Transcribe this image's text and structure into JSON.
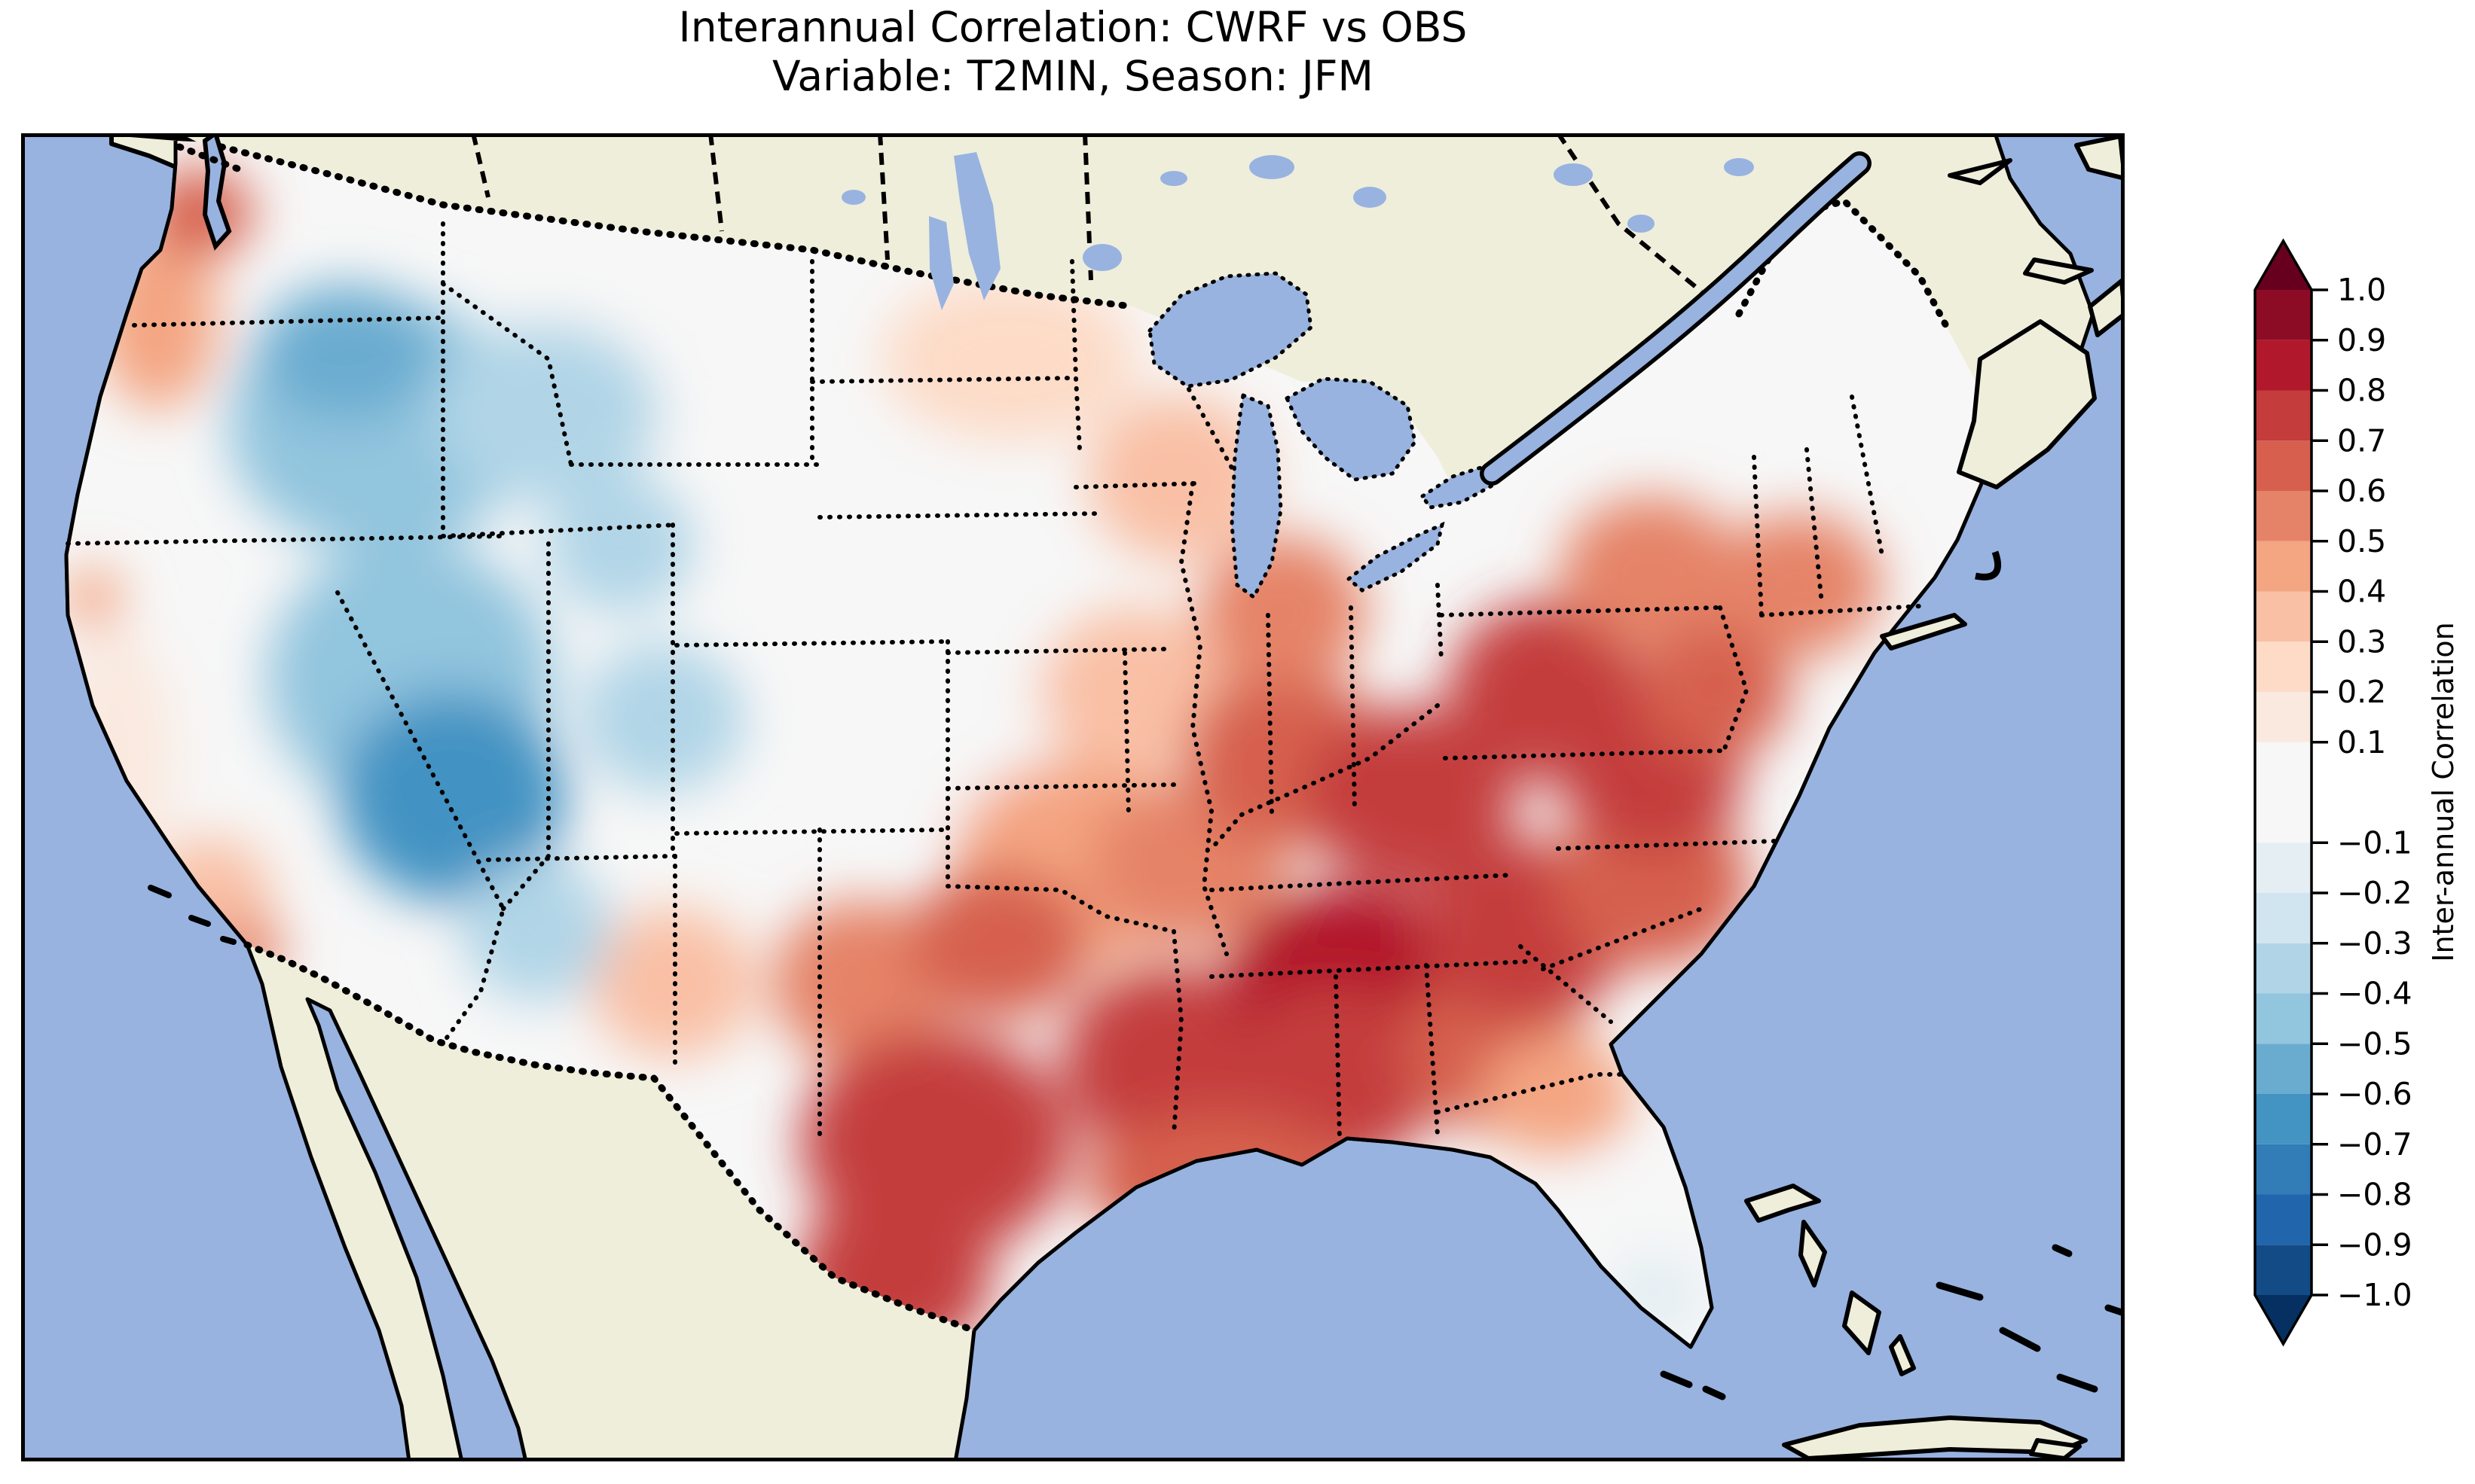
{
  "figure": {
    "title_line1": "Interannual Correlation: CWRF vs OBS",
    "title_line2": "Variable: T2MIN, Season: JFM"
  },
  "map": {
    "colors": {
      "ocean": "#98b3e0",
      "land": "#efeedb",
      "lake": "#98b3e0",
      "coastline": "#000000",
      "background": "#ffffff"
    }
  },
  "colorbar": {
    "label": "Inter-annual Correlation",
    "orientation": "vertical",
    "ticks": [
      {
        "value": 1.0,
        "label": "1.0"
      },
      {
        "value": 0.9,
        "label": "0.9"
      },
      {
        "value": 0.8,
        "label": "0.8"
      },
      {
        "value": 0.7,
        "label": "0.7"
      },
      {
        "value": 0.6,
        "label": "0.6"
      },
      {
        "value": 0.5,
        "label": "0.5"
      },
      {
        "value": 0.4,
        "label": "0.4"
      },
      {
        "value": 0.3,
        "label": "0.3"
      },
      {
        "value": 0.2,
        "label": "0.2"
      },
      {
        "value": 0.1,
        "label": "0.1"
      },
      {
        "value": -0.1,
        "label": "−0.1"
      },
      {
        "value": -0.2,
        "label": "−0.2"
      },
      {
        "value": -0.3,
        "label": "−0.3"
      },
      {
        "value": -0.4,
        "label": "−0.4"
      },
      {
        "value": -0.5,
        "label": "−0.5"
      },
      {
        "value": -0.6,
        "label": "−0.6"
      },
      {
        "value": -0.7,
        "label": "−0.7"
      },
      {
        "value": -0.8,
        "label": "−0.8"
      },
      {
        "value": -0.9,
        "label": "−0.9"
      },
      {
        "value": -1.0,
        "label": "−1.0"
      }
    ],
    "levels": [
      -1.0,
      -0.9,
      -0.8,
      -0.7,
      -0.6,
      -0.5,
      -0.4,
      -0.3,
      -0.2,
      -0.1,
      0.1,
      0.2,
      0.3,
      0.4,
      0.5,
      0.6,
      0.7,
      0.8,
      0.9,
      1.0
    ],
    "bin_colors": [
      "#134b86",
      "#2166ac",
      "#327cb7",
      "#4393c3",
      "#6aacd0",
      "#92c5de",
      "#b1d5e7",
      "#d1e5f0",
      "#e4eef3",
      "#f7f7f7",
      "#fae9df",
      "#fddbc7",
      "#f9c0a5",
      "#f4a582",
      "#e58368",
      "#d6604d",
      "#c43c3c",
      "#b2182b",
      "#8d0c25"
    ],
    "under_color": "#053061",
    "over_color": "#67001f"
  },
  "chart_data": {
    "type": "heatmap",
    "subtype": "filled-contour-map",
    "title": "Interannual Correlation: CWRF vs OBS",
    "subtitle": "Variable: T2MIN, Season: JFM",
    "comparison": "CWRF vs OBS",
    "variable": "T2MIN",
    "season": "JFM",
    "colorbar_label": "Inter-annual Correlation",
    "colormap": "RdBu_r",
    "value_range": [
      -1.0,
      1.0
    ],
    "contour_levels": [
      -1.0,
      -0.9,
      -0.8,
      -0.7,
      -0.6,
      -0.5,
      -0.4,
      -0.3,
      -0.2,
      -0.1,
      0.1,
      0.2,
      0.3,
      0.4,
      0.5,
      0.6,
      0.7,
      0.8,
      0.9,
      1.0
    ],
    "domain": "Continental United States (contour field masked to US)",
    "regions": [
      {
        "name": "montana-dakotas-white",
        "fx": 0.3,
        "fy": 0.17,
        "rx": 200,
        "ry": 130,
        "value": 0.05
      },
      {
        "name": "central-plains-white",
        "fx": 0.405,
        "fy": 0.33,
        "rx": 210,
        "ry": 190,
        "value": 0.05
      },
      {
        "name": "nebraska-kansas-white",
        "fx": 0.44,
        "fy": 0.44,
        "rx": 160,
        "ry": 160,
        "value": 0.05
      },
      {
        "name": "california-central-white",
        "fx": 0.045,
        "fy": 0.47,
        "rx": 80,
        "ry": 170,
        "value": 0.1
      },
      {
        "name": "maine-pale",
        "fx": 0.875,
        "fy": 0.17,
        "rx": 90,
        "ry": 90,
        "value": 0.05
      },
      {
        "name": "north-dakota-minnesota-pink",
        "fx": 0.47,
        "fy": 0.17,
        "rx": 170,
        "ry": 110,
        "value": 0.2
      },
      {
        "name": "wisconsin-pink",
        "fx": 0.55,
        "fy": 0.26,
        "rx": 120,
        "ry": 110,
        "value": 0.3
      },
      {
        "name": "iowa-illinois-pink",
        "fx": 0.53,
        "fy": 0.42,
        "rx": 130,
        "ry": 110,
        "value": 0.35
      },
      {
        "name": "eastern-plains-salmon",
        "fx": 0.5,
        "fy": 0.55,
        "rx": 160,
        "ry": 140,
        "value": 0.4
      },
      {
        "name": "new-mexico-east",
        "fx": 0.31,
        "fy": 0.64,
        "rx": 110,
        "ry": 100,
        "value": 0.35
      },
      {
        "name": "washington-coast",
        "fx": 0.065,
        "fy": 0.14,
        "rx": 80,
        "ry": 120,
        "value": 0.4
      },
      {
        "name": "pacific-northwest-core",
        "fx": 0.085,
        "fy": 0.06,
        "rx": 70,
        "ry": 60,
        "value": 0.65
      },
      {
        "name": "san-francisco-spot",
        "fx": 0.034,
        "fy": 0.35,
        "rx": 40,
        "ry": 40,
        "value": 0.45
      },
      {
        "name": "southern-california",
        "fx": 0.09,
        "fy": 0.57,
        "rx": 80,
        "ry": 70,
        "value": 0.3
      },
      {
        "name": "san-diego-spot",
        "fx": 0.107,
        "fy": 0.615,
        "rx": 50,
        "ry": 45,
        "value": 0.55
      },
      {
        "name": "northwest-interior-blue",
        "fx": 0.17,
        "fy": 0.22,
        "rx": 200,
        "ry": 170,
        "value": -0.45
      },
      {
        "name": "northwest-interior-core",
        "fx": 0.155,
        "fy": 0.165,
        "rx": 120,
        "ry": 90,
        "value": -0.6
      },
      {
        "name": "idaho-montana-blue",
        "fx": 0.25,
        "fy": 0.21,
        "rx": 150,
        "ry": 120,
        "value": -0.35
      },
      {
        "name": "great-basin-blue",
        "fx": 0.185,
        "fy": 0.41,
        "rx": 190,
        "ry": 180,
        "value": -0.5
      },
      {
        "name": "four-corners-core",
        "fx": 0.205,
        "fy": 0.5,
        "rx": 150,
        "ry": 140,
        "value": -0.65
      },
      {
        "name": "wyoming-blue",
        "fx": 0.285,
        "fy": 0.31,
        "rx": 100,
        "ry": 90,
        "value": -0.35
      },
      {
        "name": "colorado-blue",
        "fx": 0.305,
        "fy": 0.44,
        "rx": 110,
        "ry": 100,
        "value": -0.35
      },
      {
        "name": "west-new-mexico-blue",
        "fx": 0.245,
        "fy": 0.6,
        "rx": 100,
        "ry": 95,
        "value": -0.35
      },
      {
        "name": "texas-panhandle",
        "fx": 0.4,
        "fy": 0.64,
        "rx": 120,
        "ry": 110,
        "value": 0.5
      },
      {
        "name": "oklahoma",
        "fx": 0.465,
        "fy": 0.61,
        "rx": 120,
        "ry": 100,
        "value": 0.6
      },
      {
        "name": "missouri",
        "fx": 0.555,
        "fy": 0.55,
        "rx": 130,
        "ry": 110,
        "value": 0.55
      },
      {
        "name": "illinois-indiana",
        "fx": 0.6,
        "fy": 0.47,
        "rx": 130,
        "ry": 120,
        "value": 0.6
      },
      {
        "name": "michigan",
        "fx": 0.6,
        "fy": 0.36,
        "rx": 110,
        "ry": 100,
        "value": 0.5
      },
      {
        "name": "ohio-valley-core",
        "fx": 0.66,
        "fy": 0.5,
        "rx": 140,
        "ry": 120,
        "value": 0.75
      },
      {
        "name": "texas-core",
        "fx": 0.435,
        "fy": 0.76,
        "rx": 180,
        "ry": 150,
        "value": 0.7
      },
      {
        "name": "south-texas",
        "fx": 0.415,
        "fy": 0.86,
        "rx": 130,
        "ry": 110,
        "value": 0.7
      },
      {
        "name": "arkansas-louisiana",
        "fx": 0.545,
        "fy": 0.7,
        "rx": 140,
        "ry": 130,
        "value": 0.7
      },
      {
        "name": "kentucky-tennessee-core",
        "fx": 0.63,
        "fy": 0.64,
        "rx": 160,
        "ry": 130,
        "value": 0.8
      },
      {
        "name": "mississippi-alabama",
        "fx": 0.625,
        "fy": 0.71,
        "rx": 140,
        "ry": 120,
        "value": 0.7
      },
      {
        "name": "gulf-coast",
        "fx": 0.57,
        "fy": 0.79,
        "rx": 180,
        "ry": 90,
        "value": 0.6
      },
      {
        "name": "georgia",
        "fx": 0.7,
        "fy": 0.69,
        "rx": 120,
        "ry": 110,
        "value": 0.6
      },
      {
        "name": "southeast-core",
        "fx": 0.715,
        "fy": 0.6,
        "rx": 140,
        "ry": 120,
        "value": 0.75
      },
      {
        "name": "carolinas",
        "fx": 0.775,
        "fy": 0.565,
        "rx": 130,
        "ry": 110,
        "value": 0.65
      },
      {
        "name": "virginia",
        "fx": 0.775,
        "fy": 0.485,
        "rx": 120,
        "ry": 100,
        "value": 0.7
      },
      {
        "name": "west-virginia-pennsylvania",
        "fx": 0.725,
        "fy": 0.42,
        "rx": 130,
        "ry": 120,
        "value": 0.7
      },
      {
        "name": "new-york",
        "fx": 0.775,
        "fy": 0.33,
        "rx": 120,
        "ry": 100,
        "value": 0.55
      },
      {
        "name": "new-england",
        "fx": 0.845,
        "fy": 0.34,
        "rx": 110,
        "ry": 95,
        "value": 0.55
      },
      {
        "name": "mid-atlantic-coast",
        "fx": 0.805,
        "fy": 0.42,
        "rx": 100,
        "ry": 90,
        "value": 0.6
      },
      {
        "name": "north-florida",
        "fx": 0.73,
        "fy": 0.725,
        "rx": 100,
        "ry": 80,
        "value": 0.45
      },
      {
        "name": "central-florida-white",
        "fx": 0.757,
        "fy": 0.815,
        "rx": 75,
        "ry": 65,
        "value": 0.0
      },
      {
        "name": "south-florida-blue",
        "fx": 0.777,
        "fy": 0.875,
        "rx": 65,
        "ry": 60,
        "value": -0.2
      }
    ]
  }
}
